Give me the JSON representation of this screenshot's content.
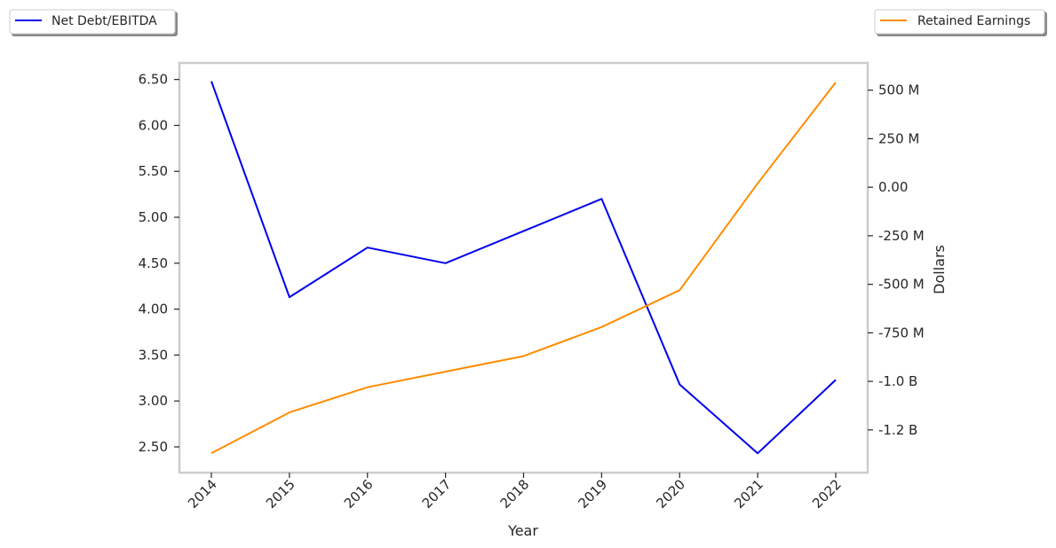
{
  "chart_data": {
    "type": "line",
    "xlabel": "Year",
    "categories": [
      "2014",
      "2015",
      "2016",
      "2017",
      "2018",
      "2019",
      "2020",
      "2021",
      "2022"
    ],
    "y_left": {
      "label": "",
      "ticks": [
        2.5,
        3.0,
        3.5,
        4.0,
        4.5,
        5.0,
        5.5,
        6.0,
        6.5
      ],
      "tick_labels": [
        "2.50",
        "3.00",
        "3.50",
        "4.00",
        "4.50",
        "5.00",
        "5.50",
        "6.00",
        "6.50"
      ],
      "range": [
        2.22,
        6.68
      ]
    },
    "y_right": {
      "label": "Dollars",
      "ticks": [
        500000000,
        250000000,
        0,
        -250000000,
        -500000000,
        -750000000,
        -1000000000,
        -1250000000
      ],
      "tick_labels": [
        "500 M",
        "250 M",
        "0.00",
        "-250 M",
        "-500 M",
        "-750 M",
        "-1.0 B",
        "-1.2 B"
      ],
      "range": [
        -1470000000,
        640000000
      ]
    },
    "series": [
      {
        "name": "Net Debt/EBITDA",
        "axis": "left",
        "color": "#0000ee",
        "values": [
          6.48,
          4.13,
          4.67,
          4.5,
          4.85,
          5.2,
          3.18,
          2.43,
          3.23
        ]
      },
      {
        "name": "Retained Earnings",
        "axis": "right",
        "color": "#ff8c00",
        "values": [
          -1370000000,
          -1160000000,
          -1030000000,
          -950000000,
          -870000000,
          -720000000,
          -530000000,
          20000000,
          540000000
        ]
      }
    ],
    "grid": false,
    "legend": [
      "top-left",
      "top-right"
    ]
  }
}
